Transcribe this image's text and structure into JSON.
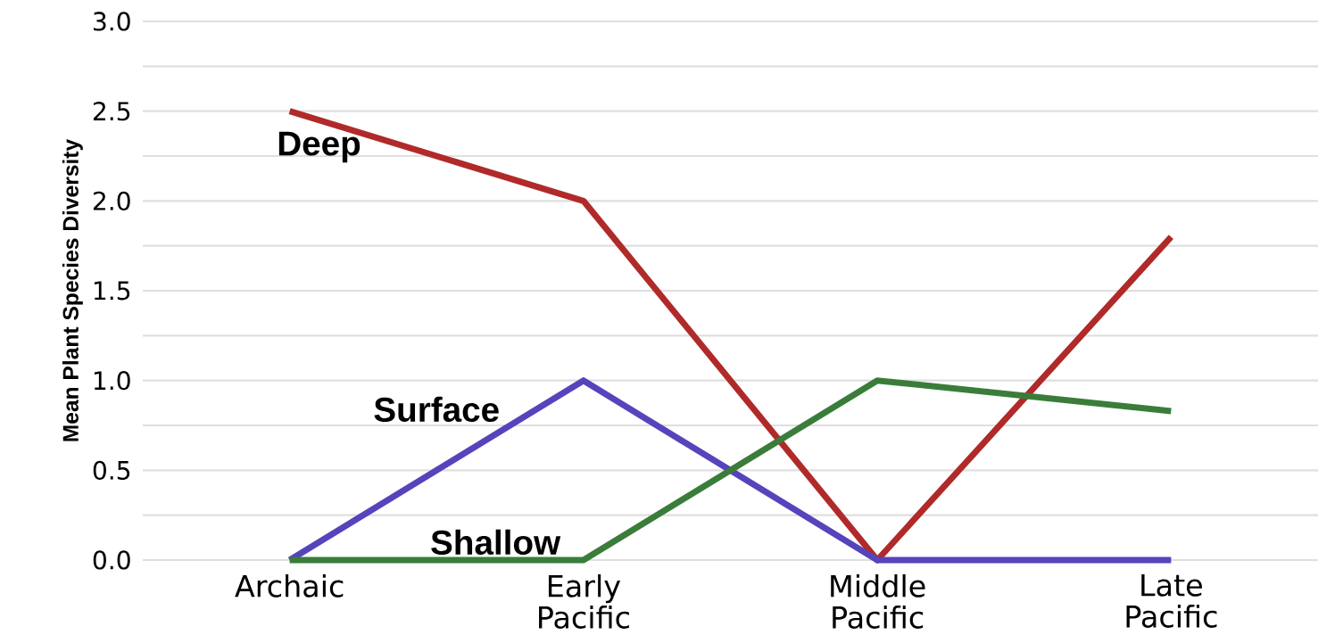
{
  "chart_data": {
    "type": "line",
    "ylabel": "Mean Plant Species Diversity",
    "categories": [
      "Archaic",
      "Early Pacific",
      "Middle Pacific",
      "Late Pacific"
    ],
    "series": [
      {
        "name": "Deep",
        "color": "#b02a2a",
        "values": [
          2.5,
          2.0,
          0,
          1.8
        ]
      },
      {
        "name": "Surface",
        "color": "#5544bb",
        "values": [
          0,
          1.0,
          0,
          0
        ]
      },
      {
        "name": "Shallow",
        "color": "#3a7d3a",
        "values": [
          0,
          0,
          1.0,
          0.83
        ]
      }
    ],
    "ylim": [
      0,
      3
    ],
    "yticks": [
      {
        "value": 0,
        "label": "0.0"
      },
      {
        "value": 0.25,
        "label": null
      },
      {
        "value": 0.5,
        "label": "0.5"
      },
      {
        "value": 0.75,
        "label": null
      },
      {
        "value": 1,
        "label": "1.0"
      },
      {
        "value": 1.25,
        "label": null
      },
      {
        "value": 1.5,
        "label": "1.5"
      },
      {
        "value": 1.75,
        "label": null
      },
      {
        "value": 2,
        "label": "2.0"
      },
      {
        "value": 2.25,
        "label": null
      },
      {
        "value": 2.5,
        "label": "2.5"
      },
      {
        "value": 2.75,
        "label": null
      },
      {
        "value": 3,
        "label": "3.0"
      }
    ],
    "grid": "y",
    "legend": false,
    "marker": "none",
    "line_style": "solid"
  }
}
